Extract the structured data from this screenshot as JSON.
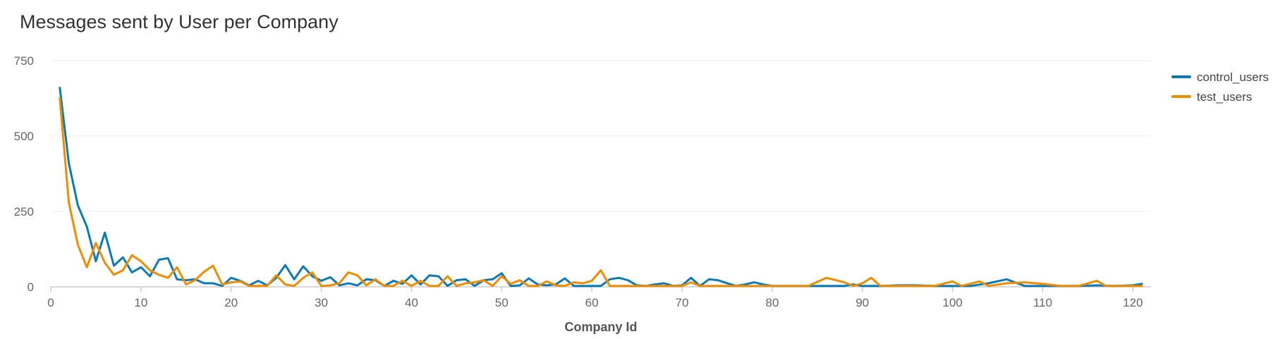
{
  "chart_data": {
    "type": "line",
    "title": "Messages sent by User per Company",
    "xlabel": "Company Id",
    "ylabel": "",
    "xlim": [
      0,
      122
    ],
    "ylim": [
      0,
      750
    ],
    "x_ticks": [
      "0",
      "10",
      "20",
      "30",
      "40",
      "50",
      "60",
      "70",
      "80",
      "90",
      "100",
      "110",
      "120"
    ],
    "y_ticks": [
      "0",
      "250",
      "500",
      "750"
    ],
    "grid": true,
    "legend_position": "top-right",
    "series": [
      {
        "name": "control_users",
        "color": "#0b7bb8",
        "x": [
          1,
          2,
          3,
          4,
          5,
          6,
          7,
          8,
          9,
          10,
          11,
          12,
          13,
          14,
          15,
          16,
          17,
          18,
          19,
          20,
          21,
          22,
          23,
          24,
          25,
          26,
          27,
          28,
          29,
          30,
          31,
          32,
          33,
          34,
          35,
          36,
          37,
          38,
          39,
          40,
          41,
          42,
          43,
          44,
          45,
          46,
          47,
          48,
          49,
          50,
          51,
          52,
          53,
          54,
          55,
          56,
          57,
          58,
          59,
          60,
          61,
          62,
          63,
          64,
          65,
          66,
          67,
          68,
          69,
          70,
          71,
          72,
          73,
          74,
          75,
          76,
          77,
          78,
          79,
          80,
          82,
          84,
          86,
          88,
          89,
          90,
          92,
          94,
          96,
          98,
          100,
          102,
          104,
          106,
          108,
          110,
          112,
          114,
          116,
          118,
          120,
          121
        ],
        "y": [
          660,
          410,
          270,
          200,
          85,
          180,
          70,
          98,
          48,
          65,
          35,
          90,
          95,
          25,
          22,
          25,
          12,
          12,
          3,
          30,
          20,
          5,
          20,
          5,
          30,
          72,
          25,
          68,
          35,
          20,
          32,
          5,
          12,
          5,
          25,
          22,
          3,
          20,
          10,
          38,
          8,
          38,
          35,
          3,
          22,
          25,
          3,
          22,
          25,
          45,
          3,
          5,
          28,
          8,
          5,
          8,
          28,
          3,
          3,
          3,
          3,
          25,
          30,
          22,
          5,
          3,
          8,
          12,
          3,
          5,
          30,
          3,
          25,
          22,
          12,
          3,
          8,
          15,
          8,
          3,
          3,
          3,
          3,
          3,
          8,
          3,
          3,
          5,
          5,
          3,
          3,
          3,
          12,
          25,
          3,
          3,
          3,
          3,
          5,
          3,
          5,
          10
        ]
      },
      {
        "name": "test_users",
        "color": "#f08c00",
        "x": [
          1,
          2,
          3,
          4,
          5,
          6,
          7,
          8,
          9,
          10,
          11,
          12,
          13,
          14,
          15,
          16,
          17,
          18,
          19,
          20,
          21,
          22,
          23,
          24,
          25,
          26,
          27,
          28,
          29,
          30,
          31,
          32,
          33,
          34,
          35,
          36,
          37,
          38,
          39,
          40,
          41,
          42,
          43,
          44,
          45,
          46,
          47,
          48,
          49,
          50,
          51,
          52,
          53,
          54,
          55,
          56,
          57,
          58,
          59,
          60,
          61,
          62,
          63,
          64,
          65,
          66,
          67,
          68,
          69,
          70,
          71,
          72,
          73,
          74,
          75,
          76,
          77,
          78,
          79,
          80,
          82,
          84,
          86,
          88,
          89,
          90,
          91,
          92,
          94,
          96,
          98,
          100,
          101,
          103,
          104,
          106,
          108,
          110,
          112,
          114,
          116,
          117,
          118,
          120,
          121
        ],
        "y": [
          625,
          280,
          140,
          65,
          145,
          80,
          40,
          55,
          105,
          85,
          55,
          40,
          30,
          65,
          8,
          22,
          50,
          70,
          8,
          15,
          18,
          3,
          3,
          3,
          38,
          8,
          3,
          30,
          48,
          3,
          5,
          12,
          48,
          38,
          5,
          25,
          3,
          3,
          20,
          3,
          20,
          3,
          3,
          35,
          3,
          12,
          15,
          22,
          3,
          35,
          10,
          22,
          3,
          3,
          18,
          5,
          3,
          15,
          12,
          20,
          55,
          3,
          3,
          3,
          3,
          3,
          3,
          3,
          3,
          3,
          15,
          3,
          3,
          3,
          3,
          3,
          3,
          3,
          3,
          3,
          3,
          3,
          30,
          15,
          3,
          12,
          30,
          3,
          3,
          3,
          3,
          18,
          3,
          18,
          3,
          12,
          15,
          10,
          3,
          3,
          20,
          3,
          3,
          3,
          3
        ]
      }
    ]
  }
}
